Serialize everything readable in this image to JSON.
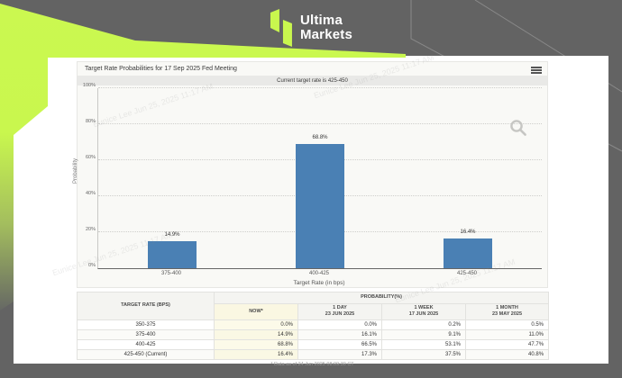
{
  "page": {
    "background_color": "#636363",
    "accent_green": "#c9f74e",
    "card_color": "#ffffff",
    "bar_color": "#4a80b4"
  },
  "logo": {
    "line1": "Ultima",
    "line2": "Markets"
  },
  "watermark": {
    "text": "Eunice Lee Jun 25, 2025 11:17 AM"
  },
  "chart": {
    "title": "Target Rate Probabilities for 17 Sep 2025 Fed Meeting",
    "subtitle": "Current target rate is 425-450",
    "ylabel": "Probability",
    "xlabel": "Target Rate (in bps)",
    "yticks": [
      "0%",
      "20%",
      "40%",
      "60%",
      "80%",
      "100%"
    ]
  },
  "chart_data": {
    "type": "bar",
    "title": "Target Rate Probabilities for 17 Sep 2025 Fed Meeting",
    "subtitle": "Current target rate is 425-450",
    "categories": [
      "375-400",
      "400-425",
      "425-450"
    ],
    "values": [
      14.9,
      68.8,
      16.4
    ],
    "labels": [
      "14.9%",
      "68.8%",
      "16.4%"
    ],
    "xlabel": "Target Rate (in bps)",
    "ylabel": "Probability",
    "ylim": [
      0,
      100
    ],
    "grid": "horizontal-dotted",
    "legend": "none",
    "bar_color": "#4a80b4"
  },
  "table": {
    "col1_header": "TARGET RATE (BPS)",
    "group_header": "PROBABILITY(%)",
    "sub_headers": [
      {
        "l1": "NOW*",
        "l2": ""
      },
      {
        "l1": "1 DAY",
        "l2": "23 JUN 2025"
      },
      {
        "l1": "1 WEEK",
        "l2": "17 JUN 2025"
      },
      {
        "l1": "1 MONTH",
        "l2": "23 MAY 2025"
      }
    ],
    "rows": [
      {
        "rate": "350-375",
        "now": "0.0%",
        "d1": "0.0%",
        "w1": "0.2%",
        "m1": "0.5%"
      },
      {
        "rate": "375-400",
        "now": "14.9%",
        "d1": "16.1%",
        "w1": "9.1%",
        "m1": "11.0%"
      },
      {
        "rate": "400-425",
        "now": "68.8%",
        "d1": "66.5%",
        "w1": "53.1%",
        "m1": "47.7%"
      },
      {
        "rate": "425-450 (Current)",
        "now": "16.4%",
        "d1": "17.3%",
        "w1": "37.5%",
        "m1": "40.8%"
      }
    ],
    "footnote": "* Data as of 24 Jun 2025 08:09:30 CT"
  }
}
